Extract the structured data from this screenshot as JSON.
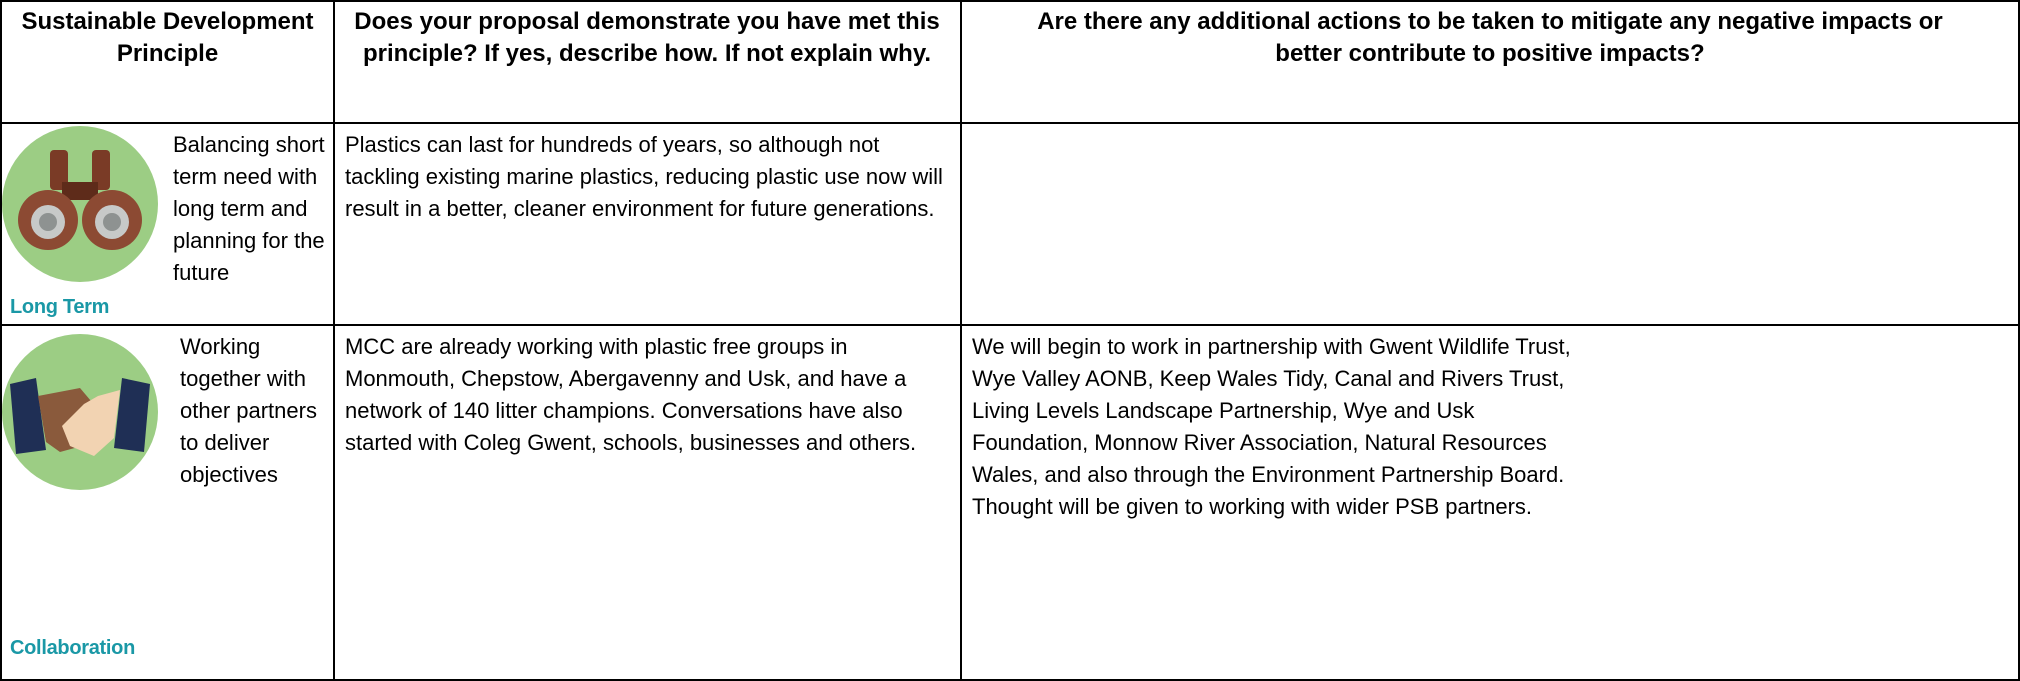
{
  "table": {
    "header": [
      "Sustainable Development Principle",
      "Does your proposal demonstrate you have met this principle?  If yes, describe how.  If not explain why.",
      "Are there any additional actions to be taken to mitigate any negative impacts or better contribute to positive impacts?"
    ],
    "rows": [
      {
        "icon_label": "Long Term",
        "principle": "Balancing short term need with long term and planning for the future",
        "response": "Plastics can last for hundreds of years, so although not tackling existing marine plastics, reducing plastic use now will result in a better, cleaner environment for future generations."
      },
      {
        "icon_label": "Collaboration",
        "principle": "Working together with other partners to deliver objectives",
        "response": "MCC are already working with plastic free groups in Monmouth, Chepstow, Abergavenny and Usk, and have a network of 140 litter champions.  Conversations have also started with Coleg Gwent, schools, businesses and others.",
        "actions": "We will begin to work in partnership with Gwent Wildlife Trust, Wye Valley AONB, Keep Wales Tidy, Canal and Rivers Trust, Living Levels Landscape Partnership, Wye and Usk Foundation, Monnow River Association, Natural Resources Wales, and also through the Environment Partnership Board.  Thought will be given to working with wider PSB partners."
      }
    ]
  }
}
